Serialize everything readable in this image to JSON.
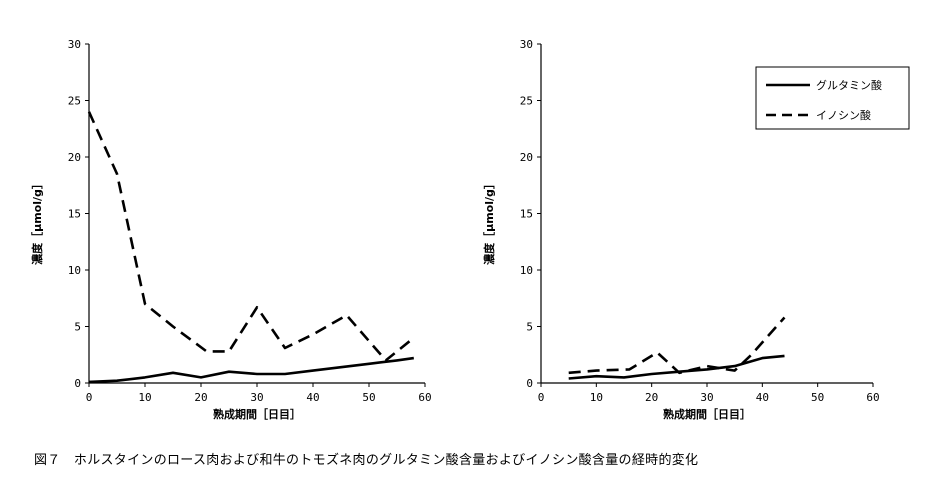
{
  "caption": "図７　ホルスタインのロース肉および和牛のトモズネ肉のグルタミン酸含量およびイノシン酸含量の経時的変化",
  "chart_data": [
    {
      "type": "line",
      "xlabel": "熟成期間［日目］",
      "ylabel": "濃度［μmol/g］",
      "xlim": [
        0,
        60
      ],
      "ylim": [
        0,
        30
      ],
      "xticks": [
        0,
        10,
        20,
        30,
        40,
        50,
        60
      ],
      "yticks": [
        0,
        5,
        10,
        15,
        20,
        25,
        30
      ],
      "grid": false,
      "series": [
        {
          "name": "グルタミン酸",
          "style": "solid",
          "x": [
            0,
            5,
            10,
            15,
            20,
            25,
            30,
            35,
            40,
            45,
            50,
            55,
            58
          ],
          "y": [
            0.1,
            0.2,
            0.5,
            0.9,
            0.5,
            1.0,
            0.8,
            0.8,
            1.1,
            1.4,
            1.7,
            2.0,
            2.2
          ]
        },
        {
          "name": "イノシン酸",
          "style": "dashed",
          "x": [
            0,
            5,
            10,
            15,
            21,
            25,
            30,
            35,
            40,
            46,
            53,
            58
          ],
          "y": [
            24,
            18.5,
            7,
            5,
            2.8,
            2.8,
            6.7,
            3.1,
            4.3,
            6.0,
            2.0,
            4.0
          ]
        }
      ]
    },
    {
      "type": "line",
      "xlabel": "熟成期間［日目］",
      "ylabel": "濃度［μmol/g］",
      "xlim": [
        0,
        60
      ],
      "ylim": [
        0,
        30
      ],
      "xticks": [
        0,
        10,
        20,
        30,
        40,
        50,
        60
      ],
      "yticks": [
        0,
        5,
        10,
        15,
        20,
        25,
        30
      ],
      "grid": false,
      "legend": "top-right",
      "series": [
        {
          "name": "グルタミン酸",
          "style": "solid",
          "x": [
            5,
            10,
            15,
            20,
            25,
            30,
            35,
            40,
            44
          ],
          "y": [
            0.4,
            0.6,
            0.5,
            0.8,
            1.0,
            1.2,
            1.5,
            2.2,
            2.4
          ]
        },
        {
          "name": "イノシン酸",
          "style": "dashed",
          "x": [
            5,
            10,
            16,
            21,
            25,
            30,
            35,
            38,
            44
          ],
          "y": [
            0.9,
            1.1,
            1.2,
            2.7,
            0.9,
            1.5,
            1.1,
            2.5,
            5.8
          ]
        }
      ]
    }
  ]
}
